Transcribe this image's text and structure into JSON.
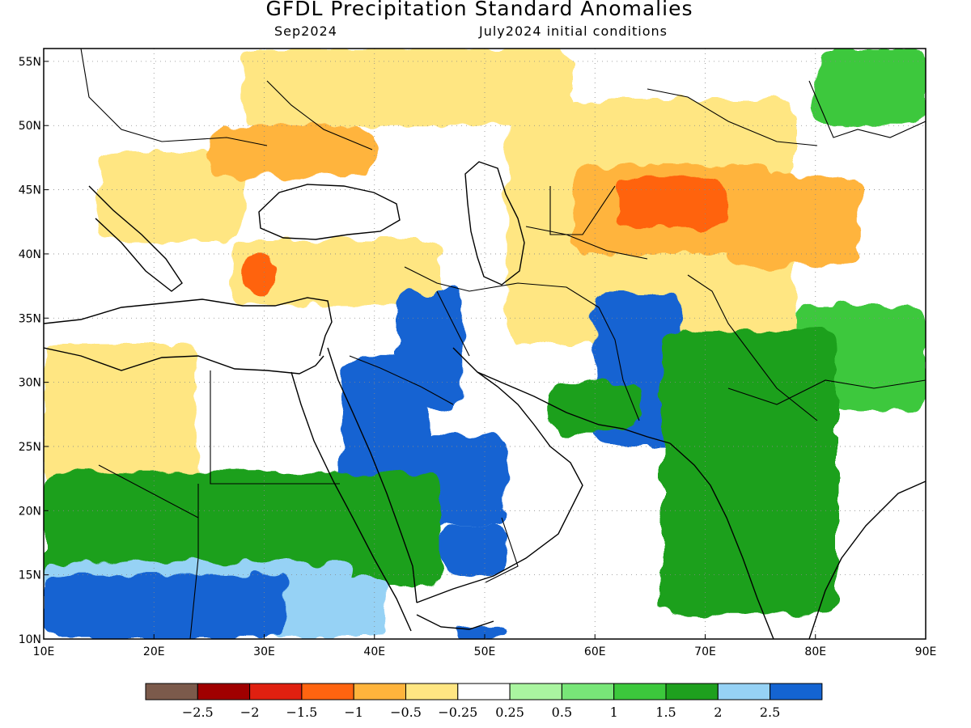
{
  "title": "GFDL Precipitation Standard Anomalies",
  "valid_month": "Sep2024",
  "init_conditions": "July2024 initial conditions",
  "chart_data": {
    "type": "heatmap",
    "x_axis": {
      "range": [
        10,
        90
      ],
      "ticks": [
        "10E",
        "20E",
        "30E",
        "40E",
        "50E",
        "60E",
        "70E",
        "80E",
        "90E"
      ]
    },
    "y_axis": {
      "range": [
        10,
        56
      ],
      "ticks": [
        "10N",
        "15N",
        "20N",
        "25N",
        "30N",
        "35N",
        "40N",
        "45N",
        "50N",
        "55N"
      ]
    },
    "colorbar": {
      "labels": [
        "−2.5",
        "−2",
        "−1.5",
        "−1",
        "−0.5",
        "−0.25",
        "0.25",
        "0.5",
        "1",
        "1.5",
        "2",
        "2.5"
      ],
      "colors": [
        "#7b5a4b",
        "#a00000",
        "#e02010",
        "#ff6410",
        "#ffb43c",
        "#ffe682",
        "#ffffff",
        "#aaf5a0",
        "#78e678",
        "#3cc83c",
        "#1ea01e",
        "#96d2f5",
        "#1464d2"
      ]
    },
    "regions": [
      {
        "lon": [
          10,
          24
        ],
        "lat": [
          22,
          33
        ],
        "value": -0.5
      },
      {
        "lon": [
          27,
          46
        ],
        "lat": [
          36,
          41
        ],
        "value": -0.5
      },
      {
        "lon": [
          28,
          31
        ],
        "lat": [
          37,
          40
        ],
        "value": -1.5
      },
      {
        "lon": [
          28,
          58
        ],
        "lat": [
          50,
          56
        ],
        "value": -0.5
      },
      {
        "lon": [
          15,
          28
        ],
        "lat": [
          41,
          48
        ],
        "value": -0.5
      },
      {
        "lon": [
          25,
          40
        ],
        "lat": [
          46,
          50
        ],
        "value": -1
      },
      {
        "lon": [
          52,
          78
        ],
        "lat": [
          33,
          52
        ],
        "value": -0.5
      },
      {
        "lon": [
          58,
          76
        ],
        "lat": [
          40,
          47
        ],
        "value": -1
      },
      {
        "lon": [
          62,
          72
        ],
        "lat": [
          42,
          46
        ],
        "value": -1.5
      },
      {
        "lon": [
          72,
          84
        ],
        "lat": [
          39,
          46
        ],
        "value": -1
      },
      {
        "lon": [
          80,
          90
        ],
        "lat": [
          50,
          56
        ],
        "value": 1
      },
      {
        "lon": [
          78,
          90
        ],
        "lat": [
          28,
          36
        ],
        "value": 1
      },
      {
        "lon": [
          42,
          48
        ],
        "lat": [
          28,
          37
        ],
        "value": 2.5
      },
      {
        "lon": [
          37,
          45
        ],
        "lat": [
          22,
          32
        ],
        "value": 2.5
      },
      {
        "lon": [
          44,
          52
        ],
        "lat": [
          19,
          26
        ],
        "value": 2.5
      },
      {
        "lon": [
          46,
          52
        ],
        "lat": [
          15,
          19
        ],
        "value": 2.5
      },
      {
        "lon": [
          60,
          68
        ],
        "lat": [
          25,
          37
        ],
        "value": 2.5
      },
      {
        "lon": [
          56,
          64
        ],
        "lat": [
          26,
          30
        ],
        "value": 1.5
      },
      {
        "lon": [
          66,
          82
        ],
        "lat": [
          12,
          34
        ],
        "value": 1.5
      },
      {
        "lon": [
          10,
          46
        ],
        "lat": [
          14,
          23
        ],
        "value": 1.5
      },
      {
        "lon": [
          10,
          38
        ],
        "lat": [
          10,
          16
        ],
        "value": 2
      },
      {
        "lon": [
          10,
          32
        ],
        "lat": [
          10,
          15
        ],
        "value": 2.5
      },
      {
        "lon": [
          35,
          41
        ],
        "lat": [
          10,
          15
        ],
        "value": 2
      },
      {
        "lon": [
          47,
          52
        ],
        "lat": [
          10,
          11
        ],
        "value": 2.5
      }
    ]
  }
}
